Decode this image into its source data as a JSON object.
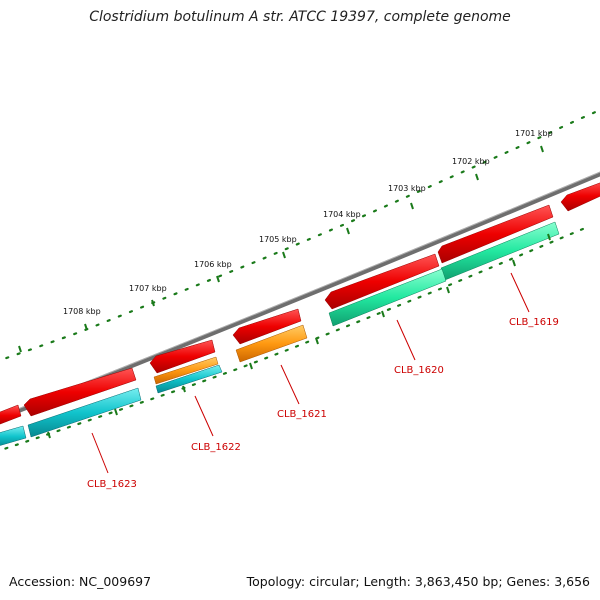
{
  "header": {
    "title": "Clostridium botulinum A str. ATCC 19397, complete genome"
  },
  "footer": {
    "accession": "Accession: NC_009697",
    "summary": "Topology: circular; Length: 3,863,450 bp; Genes: 3,656"
  },
  "map": {
    "scale_labels": [
      "1701 kbp",
      "1702 kbp",
      "1703 kbp",
      "1704 kbp",
      "1705 kbp",
      "1706 kbp",
      "1707 kbp",
      "1708 kbp"
    ],
    "gene_labels": [
      "CLB_1619",
      "CLB_1620",
      "CLB_1621",
      "CLB_1622",
      "CLB_1623"
    ],
    "colors": {
      "backbone": "#7a7a7a",
      "ticks": "#1a7a1a",
      "forward_feature": "#ee1111",
      "cds_green": "#22e8a0",
      "cds_orange": "#ff9911",
      "cds_cyan": "#11c4cc",
      "label": "#cc0000"
    }
  }
}
